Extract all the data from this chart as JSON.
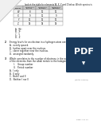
{
  "question1_intro": "look at the table for elements W, X, Y and Z below. Which species is",
  "table_headers": [
    "Species",
    "Number of\nprotons",
    "Number of\nneutrons",
    "Number of\nelectrons"
  ],
  "table_rows": [
    [
      "W",
      "8",
      "10",
      "10"
    ],
    [
      "X",
      "9",
      "11",
      "9"
    ],
    [
      "Y",
      "11",
      "12",
      "10"
    ],
    [
      "Z",
      "18",
      "18",
      "18"
    ]
  ],
  "q1_options": [
    "A.  W²⁻",
    "B.  X⁺",
    "C.  Y",
    "D.  Z"
  ],
  "q1_mark": "(Total 1 mark)",
  "q2_label": "2.",
  "q2_text": "Energy levels for an electron in a hydrogen atom are:",
  "q2_options": [
    "A.  evenly spaced.",
    "B.  further apart near the nucleus.",
    "C.  closer together near the nucleus.",
    "D.  arranged randomly."
  ],
  "q2_mark": "(Total 1 mark)",
  "q3_label": "3.",
  "q3_text": "Which correlates to the number of electrons in the outer main energy level of the elements from the alkali metals to the halogens?",
  "q3_roman": [
    "I.    Group number",
    "II.   Period number"
  ],
  "q3_options": [
    "A.  I only",
    "B.  II only",
    "C.  Both I and II",
    "D.  Neither I nor II"
  ],
  "q3_mark": "(Total 1 mark)",
  "page_footer": "Page 1 of 12",
  "bg_color": "#ffffff",
  "text_color": "#111111",
  "table_border_color": "#888888",
  "header_bg": "#cccccc",
  "pdf_badge_color": "#1a3a5c",
  "pdf_text_color": "#ffffff"
}
